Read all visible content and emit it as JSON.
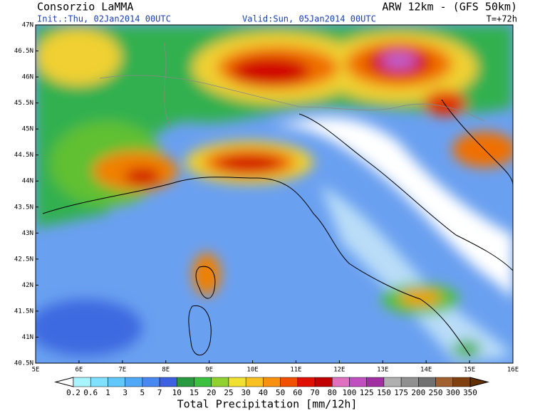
{
  "header": {
    "title": "Consorzio LaMMA",
    "model": "ARW 12km - (GFS 50km)",
    "init": "Init.:Thu, 02Jan2014 00UTC",
    "valid": "Valid:Sun, 05Jan2014 00UTC",
    "lead_time": "T=+72h"
  },
  "axes": {
    "lat_labels": [
      "47N",
      "46.5N",
      "46N",
      "45.5N",
      "45N",
      "44.5N",
      "44N",
      "43.5N",
      "43N",
      "42.5N",
      "42N",
      "41.5N",
      "41N",
      "40.5N"
    ],
    "lon_labels": [
      "5E",
      "6E",
      "7E",
      "8E",
      "9E",
      "10E",
      "11E",
      "12E",
      "13E",
      "14E",
      "15E",
      "16E"
    ]
  },
  "legend": {
    "title": "Total Precipitation [mm/12h]",
    "labels": [
      "0.2",
      "0.6",
      "1",
      "3",
      "5",
      "7",
      "10",
      "15",
      "20",
      "25",
      "30",
      "40",
      "50",
      "60",
      "70",
      "80",
      "100",
      "125",
      "150",
      "175",
      "200",
      "250",
      "300",
      "350"
    ],
    "colors": [
      "#ffffff",
      "#a8f4ff",
      "#80e0ff",
      "#60c8ff",
      "#50a8f8",
      "#4888f0",
      "#3c60e0",
      "#2a9a40",
      "#3cc040",
      "#90d030",
      "#f0e030",
      "#f8c020",
      "#f89010",
      "#f05000",
      "#e01000",
      "#c00000",
      "#e070c0",
      "#c050c0",
      "#a030a0",
      "#b0b0b0",
      "#909090",
      "#707070",
      "#a06030",
      "#804010",
      "#603000"
    ]
  }
}
